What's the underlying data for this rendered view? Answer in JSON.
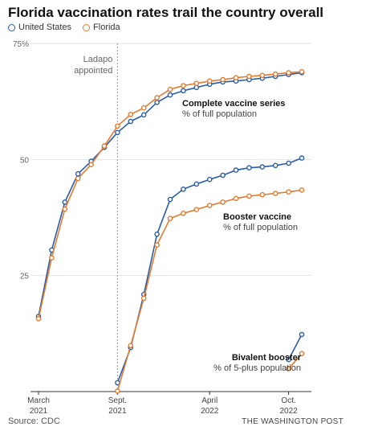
{
  "chart_data": {
    "type": "line",
    "title": "Florida vaccination rates trail the country overall",
    "ylim": [
      0,
      75
    ],
    "y_ticks": [
      {
        "value": 25,
        "label": "25"
      },
      {
        "value": 50,
        "label": "50"
      },
      {
        "value": 75,
        "label": "75%"
      }
    ],
    "x_ticks": [
      {
        "x": 0,
        "line1": "March",
        "line2": "2021"
      },
      {
        "x": 6,
        "line1": "Sept.",
        "line2": "2021"
      },
      {
        "x": 13,
        "line1": "April",
        "line2": "2022"
      },
      {
        "x": 19,
        "line1": "Oct.",
        "line2": "2022"
      }
    ],
    "xlim": [
      0,
      20
    ],
    "legend": [
      {
        "name": "United States",
        "color": "#2a5caa"
      },
      {
        "name": "Florida",
        "color": "#e37a2e"
      }
    ],
    "event": {
      "x": 6,
      "label_line1": "Ladapo",
      "label_line2": "appointed"
    },
    "groups": [
      {
        "label_line1": "Complete vaccine series",
        "label_line2": "% of full population",
        "series": [
          {
            "name": "United States",
            "color": "#2a5caa",
            "x": [
              0,
              1,
              2,
              3,
              4,
              5,
              6,
              7,
              8,
              9,
              10,
              11,
              12,
              13,
              14,
              15,
              16,
              17,
              18,
              19,
              20
            ],
            "y": [
              16.2,
              30.5,
              40.8,
              46.9,
              49.6,
              52.6,
              55.8,
              58.2,
              59.6,
              62.3,
              63.9,
              64.8,
              65.5,
              66.2,
              66.7,
              66.9,
              67.2,
              67.5,
              67.9,
              68.3,
              68.7
            ]
          },
          {
            "name": "Florida",
            "color": "#e37a2e",
            "x": [
              0,
              1,
              2,
              3,
              4,
              5,
              6,
              7,
              8,
              9,
              10,
              11,
              12,
              13,
              14,
              15,
              16,
              17,
              18,
              19,
              20
            ],
            "y": [
              15.7,
              28.8,
              39.3,
              45.9,
              48.9,
              52.9,
              57.2,
              59.7,
              61.1,
              63.3,
              65.1,
              65.9,
              66.4,
              66.9,
              67.2,
              67.6,
              67.9,
              68.1,
              68.4,
              68.7,
              68.9
            ]
          }
        ]
      },
      {
        "label_line1": "Booster vaccine",
        "label_line2": "% of full population",
        "series": [
          {
            "name": "United States",
            "color": "#2a5caa",
            "x": [
              6,
              7,
              8,
              9,
              10,
              11,
              12,
              13,
              14,
              15,
              16,
              17,
              18,
              19,
              20
            ],
            "y": [
              1.9,
              9.5,
              20.9,
              33.9,
              41.4,
              43.6,
              44.7,
              45.7,
              46.6,
              47.7,
              48.2,
              48.4,
              48.7,
              49.2,
              50.3
            ]
          },
          {
            "name": "Florida",
            "color": "#e37a2e",
            "x": [
              6,
              7,
              8,
              9,
              10,
              11,
              12,
              13,
              14,
              15,
              16,
              17,
              18,
              19,
              20
            ],
            "y": [
              0.1,
              9.9,
              20.1,
              31.6,
              37.3,
              38.4,
              39.2,
              40.1,
              40.8,
              41.6,
              42.1,
              42.4,
              42.7,
              43.0,
              43.4
            ]
          }
        ]
      },
      {
        "label_line1": "Bivalent booster",
        "label_line2": "% of 5-plus population",
        "series": [
          {
            "name": "United States",
            "color": "#2a5caa",
            "x": [
              19,
              20
            ],
            "y": [
              6.9,
              12.3
            ]
          },
          {
            "name": "Florida",
            "color": "#e37a2e",
            "x": [
              19,
              20
            ],
            "y": [
              4.9,
              8.2
            ]
          }
        ]
      }
    ]
  },
  "footer": {
    "source": "Source: CDC",
    "credit": "THE WASHINGTON POST"
  }
}
